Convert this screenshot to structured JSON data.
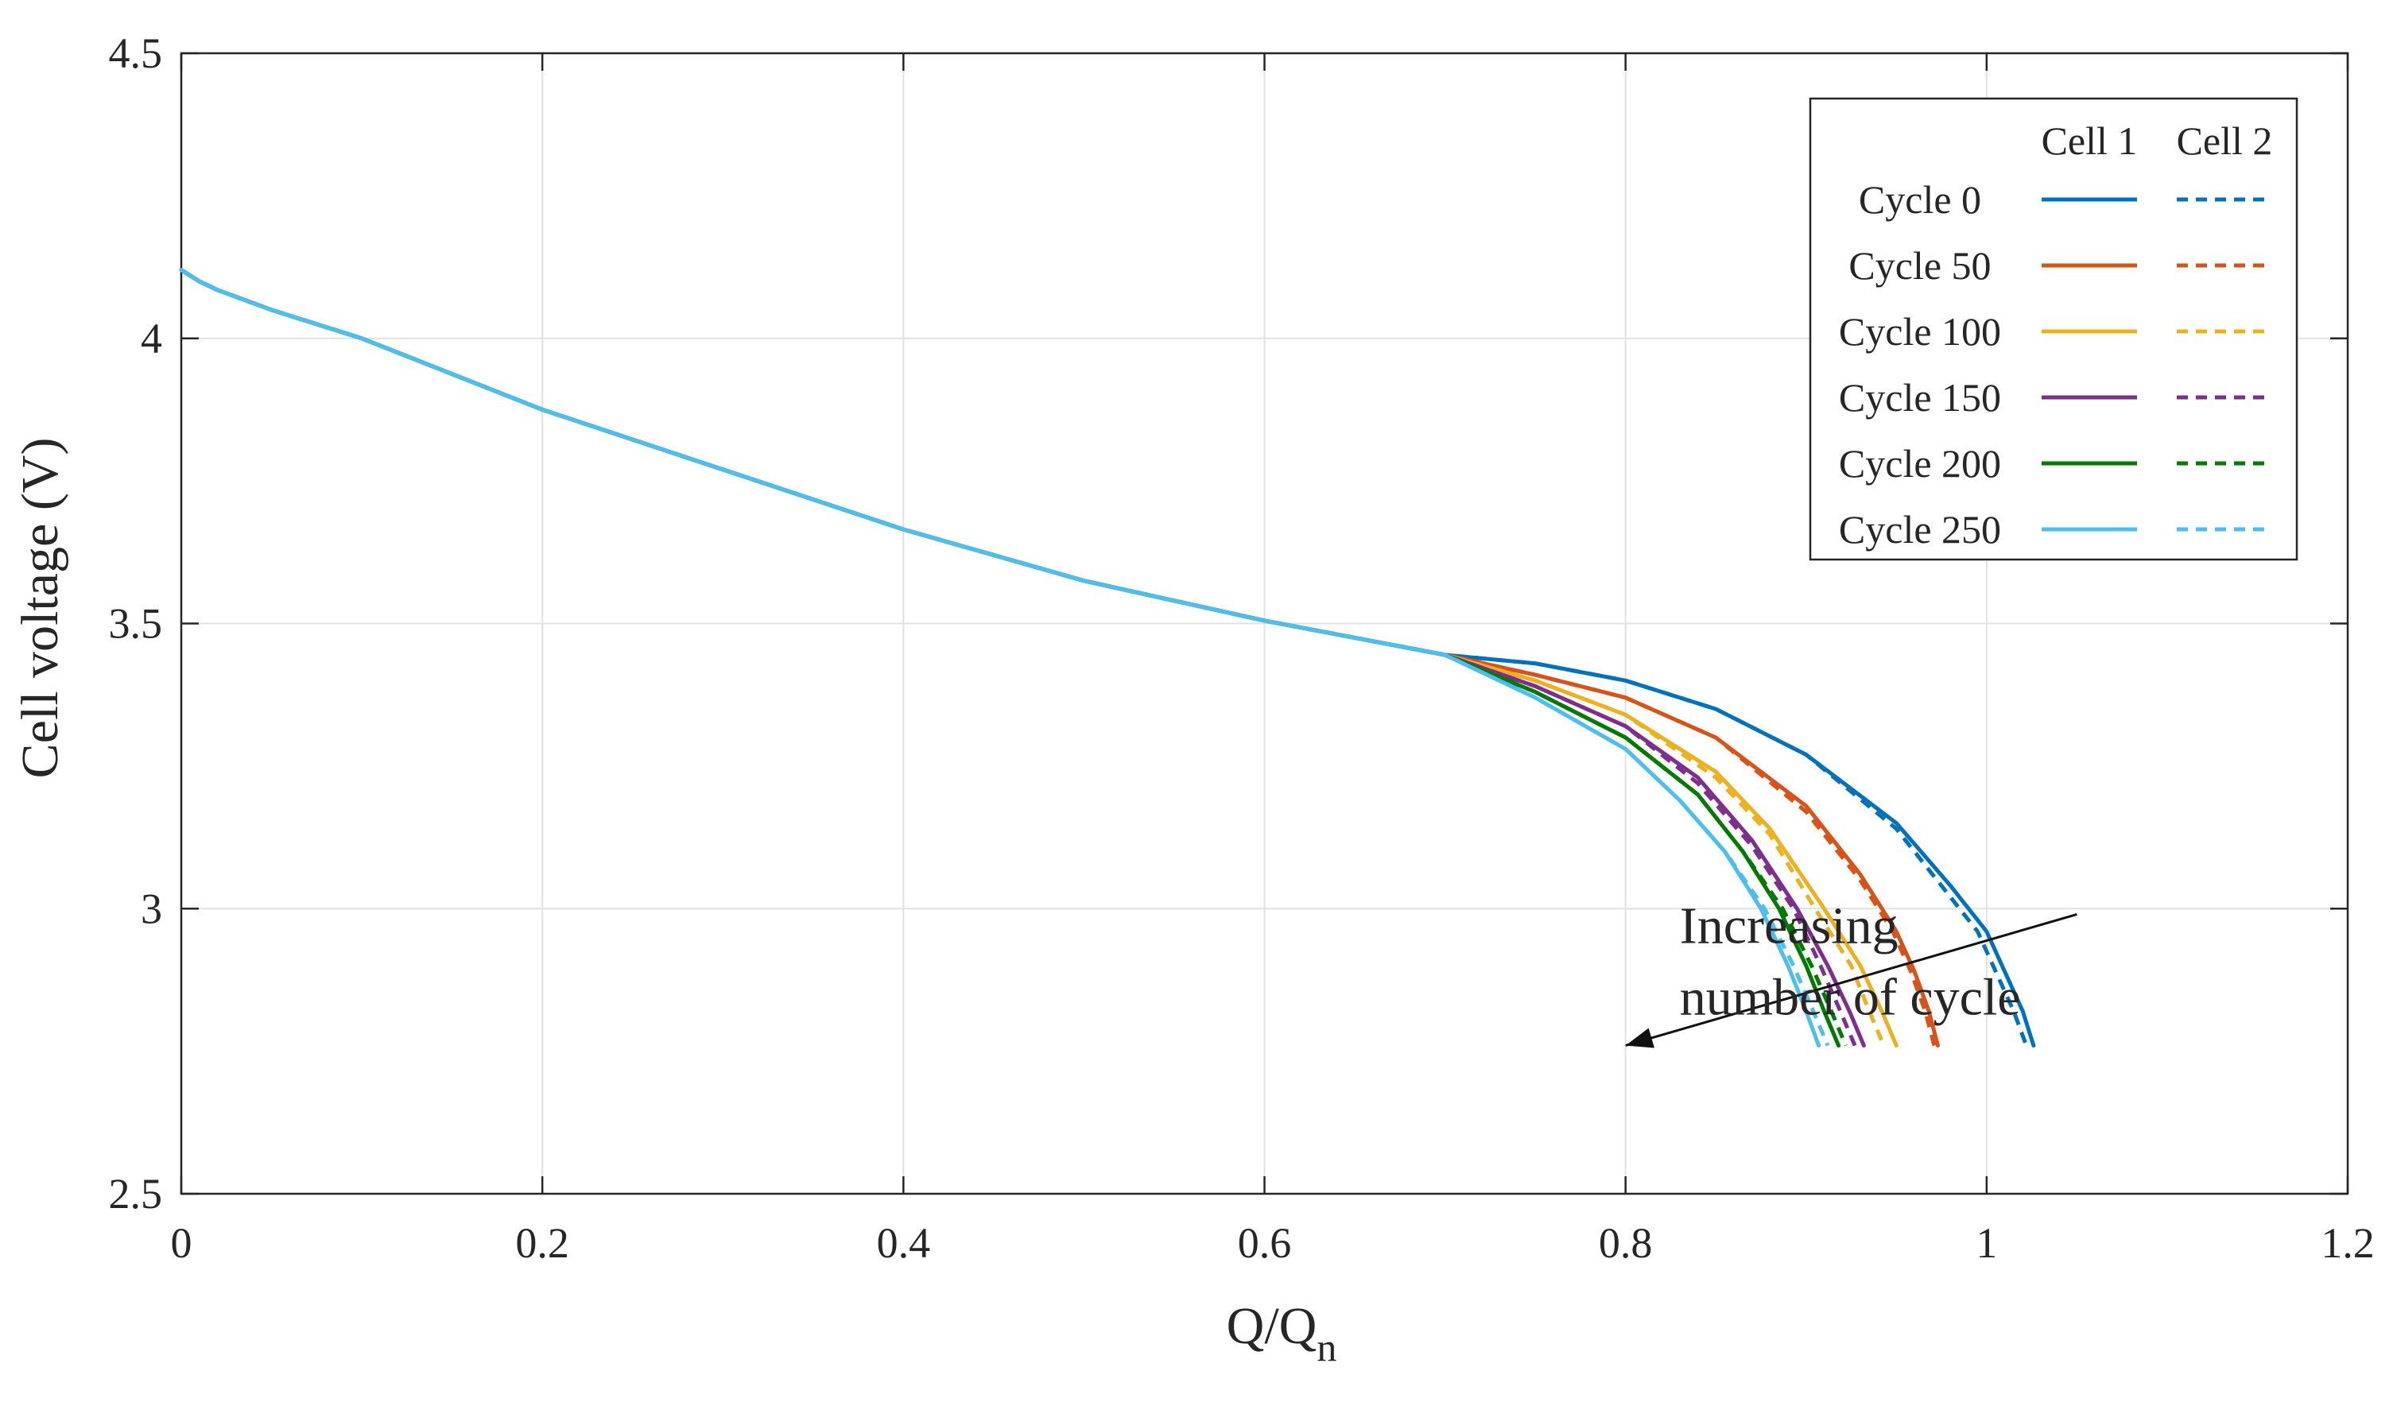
{
  "chart_data": {
    "type": "line",
    "title": "",
    "xlabel": "Q/Q",
    "xlabel_sub": "n",
    "ylabel": "Cell voltage (V)",
    "xlim": [
      0,
      1.2
    ],
    "ylim": [
      2.5,
      4.5
    ],
    "xticks": [
      0,
      0.2,
      0.4,
      0.6,
      0.8,
      1,
      1.2
    ],
    "xtick_labels": [
      "0",
      "0.2",
      "0.4",
      "0.6",
      "0.8",
      "1",
      "1.2"
    ],
    "yticks": [
      2.5,
      3,
      3.5,
      4,
      4.5
    ],
    "ytick_labels": [
      "2.5",
      "3",
      "3.5",
      "4",
      "4.5"
    ],
    "grid": true,
    "legend": {
      "placement": "top-right",
      "columns": [
        "Cell 1",
        "Cell 2"
      ],
      "rows": [
        "Cycle 0",
        "Cycle 50",
        "Cycle 100",
        "Cycle 150",
        "Cycle 200",
        "Cycle 250"
      ]
    },
    "annotation": {
      "lines": [
        "Increasing",
        "number of cycle"
      ],
      "arrow_from": [
        1.05,
        2.99
      ],
      "arrow_to": [
        0.8,
        2.76
      ],
      "text_at": [
        0.83,
        2.94
      ]
    },
    "shared_profile": {
      "x": [
        0,
        0.01,
        0.02,
        0.05,
        0.1,
        0.2,
        0.3,
        0.4,
        0.5,
        0.6,
        0.65,
        0.7
      ],
      "y": [
        4.12,
        4.1,
        4.085,
        4.05,
        4.0,
        3.875,
        3.77,
        3.665,
        3.575,
        3.505,
        3.475,
        3.445
      ]
    },
    "series": [
      {
        "name": "Cycle 0 - Cell 1",
        "cycle": "Cycle 0",
        "cell": "Cell 1",
        "color": "#0072BD",
        "x": [
          0.75,
          0.8,
          0.85,
          0.9,
          0.95,
          0.98,
          1.0,
          1.01,
          1.02,
          1.026
        ],
        "y": [
          3.43,
          3.4,
          3.35,
          3.27,
          3.15,
          3.04,
          2.96,
          2.89,
          2.82,
          2.76
        ]
      },
      {
        "name": "Cycle 0 - Cell 2",
        "cycle": "Cycle 0",
        "cell": "Cell 2",
        "color": "#0072BD",
        "x": [
          0.75,
          0.8,
          0.85,
          0.9,
          0.95,
          0.975,
          0.995,
          1.005,
          1.015,
          1.022
        ],
        "y": [
          3.43,
          3.4,
          3.35,
          3.27,
          3.14,
          3.04,
          2.96,
          2.89,
          2.82,
          2.76
        ]
      },
      {
        "name": "Cycle 50 - Cell 1",
        "cycle": "Cycle 50",
        "cell": "Cell 1",
        "color": "#D95319",
        "x": [
          0.75,
          0.8,
          0.85,
          0.9,
          0.93,
          0.95,
          0.96,
          0.968,
          0.973
        ],
        "y": [
          3.41,
          3.37,
          3.3,
          3.18,
          3.06,
          2.96,
          2.89,
          2.82,
          2.76
        ]
      },
      {
        "name": "Cycle 50 - Cell 2",
        "cycle": "Cycle 50",
        "cell": "Cell 2",
        "color": "#D95319",
        "x": [
          0.75,
          0.8,
          0.85,
          0.9,
          0.93,
          0.948,
          0.958,
          0.966,
          0.971
        ],
        "y": [
          3.41,
          3.37,
          3.3,
          3.17,
          3.05,
          2.96,
          2.89,
          2.82,
          2.76
        ]
      },
      {
        "name": "Cycle 100 - Cell 1",
        "cycle": "Cycle 100",
        "cell": "Cell 1",
        "color": "#EDB120",
        "x": [
          0.75,
          0.8,
          0.85,
          0.88,
          0.91,
          0.93,
          0.942,
          0.95
        ],
        "y": [
          3.4,
          3.34,
          3.24,
          3.14,
          3.0,
          2.9,
          2.82,
          2.76
        ]
      },
      {
        "name": "Cycle 100 - Cell 2",
        "cycle": "Cycle 100",
        "cell": "Cell 2",
        "color": "#EDB120",
        "x": [
          0.75,
          0.8,
          0.85,
          0.88,
          0.905,
          0.925,
          0.935,
          0.943
        ],
        "y": [
          3.4,
          3.34,
          3.23,
          3.13,
          3.0,
          2.9,
          2.82,
          2.76
        ]
      },
      {
        "name": "Cycle 150 - Cell 1",
        "cycle": "Cycle 150",
        "cell": "Cell 1",
        "color": "#7E2F8E",
        "x": [
          0.75,
          0.8,
          0.84,
          0.87,
          0.895,
          0.912,
          0.924,
          0.932
        ],
        "y": [
          3.39,
          3.32,
          3.23,
          3.12,
          3.0,
          2.9,
          2.82,
          2.76
        ]
      },
      {
        "name": "Cycle 150 - Cell 2",
        "cycle": "Cycle 150",
        "cell": "Cell 2",
        "color": "#7E2F8E",
        "x": [
          0.75,
          0.8,
          0.84,
          0.87,
          0.893,
          0.908,
          0.919,
          0.927
        ],
        "y": [
          3.39,
          3.32,
          3.22,
          3.11,
          3.0,
          2.9,
          2.82,
          2.76
        ]
      },
      {
        "name": "Cycle 200 - Cell 1",
        "cycle": "Cycle 200",
        "cell": "Cell 1",
        "color": "#007A00",
        "x": [
          0.75,
          0.8,
          0.84,
          0.865,
          0.885,
          0.9,
          0.91,
          0.918
        ],
        "y": [
          3.38,
          3.3,
          3.2,
          3.1,
          3.0,
          2.9,
          2.82,
          2.76
        ]
      },
      {
        "name": "Cycle 200 - Cell 2",
        "cycle": "Cycle 200",
        "cell": "Cell 2",
        "color": "#007A00",
        "x": [
          0.75,
          0.8,
          0.84,
          0.865,
          0.887,
          0.903,
          0.914,
          0.922
        ],
        "y": [
          3.38,
          3.3,
          3.2,
          3.1,
          3.0,
          2.9,
          2.82,
          2.76
        ]
      },
      {
        "name": "Cycle 250 - Cell 1",
        "cycle": "Cycle 250",
        "cell": "Cell 1",
        "color": "#4DBEEE",
        "x": [
          0.75,
          0.8,
          0.83,
          0.855,
          0.875,
          0.89,
          0.9,
          0.907
        ],
        "y": [
          3.37,
          3.28,
          3.19,
          3.1,
          3.0,
          2.9,
          2.82,
          2.76
        ]
      },
      {
        "name": "Cycle 250 - Cell 2",
        "cycle": "Cycle 250",
        "cell": "Cell 2",
        "color": "#4DBEEE",
        "x": [
          0.75,
          0.8,
          0.83,
          0.855,
          0.877,
          0.893,
          0.904,
          0.912
        ],
        "y": [
          3.37,
          3.28,
          3.19,
          3.1,
          3.0,
          2.9,
          2.82,
          2.76
        ]
      }
    ]
  }
}
